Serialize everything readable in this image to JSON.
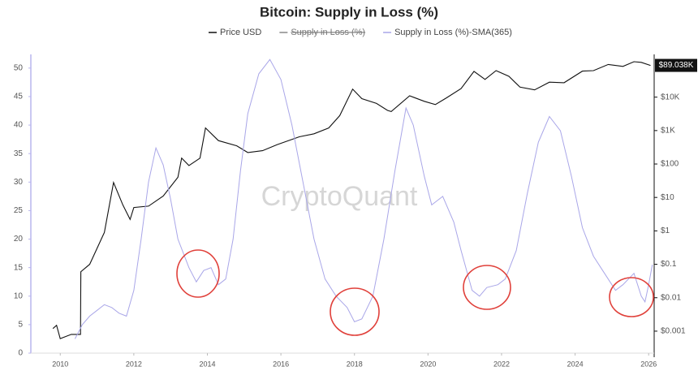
{
  "chart_data": {
    "type": "line",
    "title": "Bitcoin: Supply in Loss (%)",
    "watermark": "CryptoQuant",
    "xlim": [
      2009.2,
      2026.15
    ],
    "xticks": [
      2010,
      2012,
      2014,
      2016,
      2018,
      2020,
      2022,
      2024,
      2026
    ],
    "ylim": [
      0,
      52.4
    ],
    "yticks": [
      0,
      5,
      10,
      15,
      20,
      25,
      30,
      35,
      40,
      45,
      50
    ],
    "y2lim": [
      0.00022,
      190000
    ],
    "y2log": true,
    "y2ticks": [
      {
        "value": 0.001,
        "label": "$0.001"
      },
      {
        "value": 0.01,
        "label": "$0.01"
      },
      {
        "value": 0.1,
        "label": "$0.1"
      },
      {
        "value": 1,
        "label": "$1"
      },
      {
        "value": 10,
        "label": "$10"
      },
      {
        "value": 100,
        "label": "$100"
      },
      {
        "value": 1000,
        "label": "$1K"
      },
      {
        "value": 10000,
        "label": "$10K"
      }
    ],
    "last_price": {
      "value": 89038,
      "label": "$89.038K"
    },
    "hidden_series": [
      {
        "name": "Supply in Loss (%)",
        "color": "#888888"
      }
    ],
    "series": [
      {
        "name": "Price USD",
        "color": "#111111",
        "axis": "y2",
        "x": [
          2009.8,
          2009.9,
          2010.0,
          2010.3,
          2010.55,
          2010.56,
          2010.8,
          2011.0,
          2011.2,
          2011.45,
          2011.7,
          2011.9,
          2012.0,
          2012.4,
          2012.8,
          2013.2,
          2013.3,
          2013.5,
          2013.8,
          2013.95,
          2014.3,
          2014.8,
          2015.1,
          2015.5,
          2015.9,
          2016.5,
          2016.9,
          2017.3,
          2017.6,
          2017.95,
          2018.2,
          2018.6,
          2018.9,
          2019.0,
          2019.5,
          2019.9,
          2020.2,
          2020.5,
          2020.9,
          2021.25,
          2021.55,
          2021.85,
          2022.2,
          2022.5,
          2022.9,
          2023.3,
          2023.7,
          2024.2,
          2024.5,
          2024.9,
          2025.3,
          2025.6,
          2025.8,
          2026.05
        ],
        "values": [
          0.0012,
          0.0015,
          0.0006,
          0.0008,
          0.0008,
          0.06,
          0.1,
          0.3,
          0.9,
          28,
          6,
          2.2,
          5,
          5.5,
          11,
          40,
          150,
          90,
          150,
          1200,
          500,
          350,
          220,
          250,
          380,
          650,
          800,
          1200,
          2800,
          17400,
          9000,
          6500,
          4000,
          3700,
          11000,
          7500,
          6000,
          9500,
          18000,
          59000,
          34000,
          62000,
          42000,
          20000,
          16500,
          28000,
          27000,
          60000,
          62000,
          95000,
          83000,
          115000,
          110000,
          89038
        ]
      },
      {
        "name": "Supply in Loss (%)-SMA(365)",
        "color": "#a9a6e8",
        "axis": "y",
        "x": [
          2010.4,
          2010.6,
          2010.8,
          2011.0,
          2011.2,
          2011.4,
          2011.6,
          2011.8,
          2012.0,
          2012.2,
          2012.4,
          2012.6,
          2012.8,
          2013.0,
          2013.2,
          2013.5,
          2013.7,
          2013.9,
          2014.1,
          2014.3,
          2014.5,
          2014.7,
          2014.9,
          2015.1,
          2015.4,
          2015.7,
          2016.0,
          2016.3,
          2016.6,
          2016.9,
          2017.2,
          2017.5,
          2017.8,
          2018.0,
          2018.2,
          2018.5,
          2018.8,
          2019.1,
          2019.4,
          2019.6,
          2019.9,
          2020.1,
          2020.4,
          2020.7,
          2020.9,
          2021.2,
          2021.4,
          2021.6,
          2021.9,
          2022.1,
          2022.4,
          2022.7,
          2023.0,
          2023.3,
          2023.6,
          2023.9,
          2024.2,
          2024.5,
          2024.8,
          2025.1,
          2025.3,
          2025.6,
          2025.8,
          2025.9,
          2026.0,
          2026.1
        ],
        "values": [
          2.5,
          5,
          6.5,
          7.5,
          8.5,
          8,
          7,
          6.5,
          11,
          20,
          30,
          36,
          33,
          27,
          20,
          15,
          12.5,
          14.5,
          15,
          12,
          13,
          20,
          32,
          42,
          49,
          51.5,
          48,
          40,
          30,
          20,
          13,
          10,
          8,
          5.5,
          6,
          10,
          20,
          32,
          43,
          40,
          31,
          26,
          27.5,
          23,
          18,
          11,
          10,
          11.5,
          12,
          13,
          18,
          28,
          37,
          41.5,
          39,
          31,
          22,
          17,
          14,
          11,
          12,
          14,
          10,
          9,
          12,
          15.5
        ]
      }
    ]
  }
}
